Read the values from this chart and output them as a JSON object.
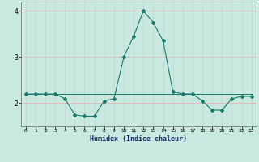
{
  "xlabel": "Humidex (Indice chaleur)",
  "x": [
    0,
    1,
    2,
    3,
    4,
    5,
    6,
    7,
    8,
    9,
    10,
    11,
    12,
    13,
    14,
    15,
    16,
    17,
    18,
    19,
    20,
    21,
    22,
    23
  ],
  "y_main": [
    2.2,
    2.2,
    2.2,
    2.2,
    2.1,
    1.75,
    1.72,
    1.72,
    2.05,
    2.1,
    3.0,
    3.45,
    4.0,
    3.75,
    3.35,
    2.25,
    2.2,
    2.2,
    2.05,
    1.85,
    1.85,
    2.1,
    2.15,
    2.15
  ],
  "y_flat": [
    2.2,
    2.2,
    2.2,
    2.2,
    2.2,
    2.2,
    2.2,
    2.2,
    2.2,
    2.2,
    2.2,
    2.2,
    2.2,
    2.2,
    2.2,
    2.2,
    2.2,
    2.2,
    2.2,
    2.2,
    2.2,
    2.2,
    2.2,
    2.2
  ],
  "line_color": "#1a7a6a",
  "bg_color": "#c8e8e0",
  "grid_color_h": "#e8b0b0",
  "grid_color_v": "#c0d8d0",
  "ylim": [
    1.5,
    4.2
  ],
  "xlim": [
    -0.5,
    23.5
  ],
  "yticks": [
    2,
    3,
    4
  ],
  "xticks": [
    0,
    1,
    2,
    3,
    4,
    5,
    6,
    7,
    8,
    9,
    10,
    11,
    12,
    13,
    14,
    15,
    16,
    17,
    18,
    19,
    20,
    21,
    22,
    23
  ]
}
